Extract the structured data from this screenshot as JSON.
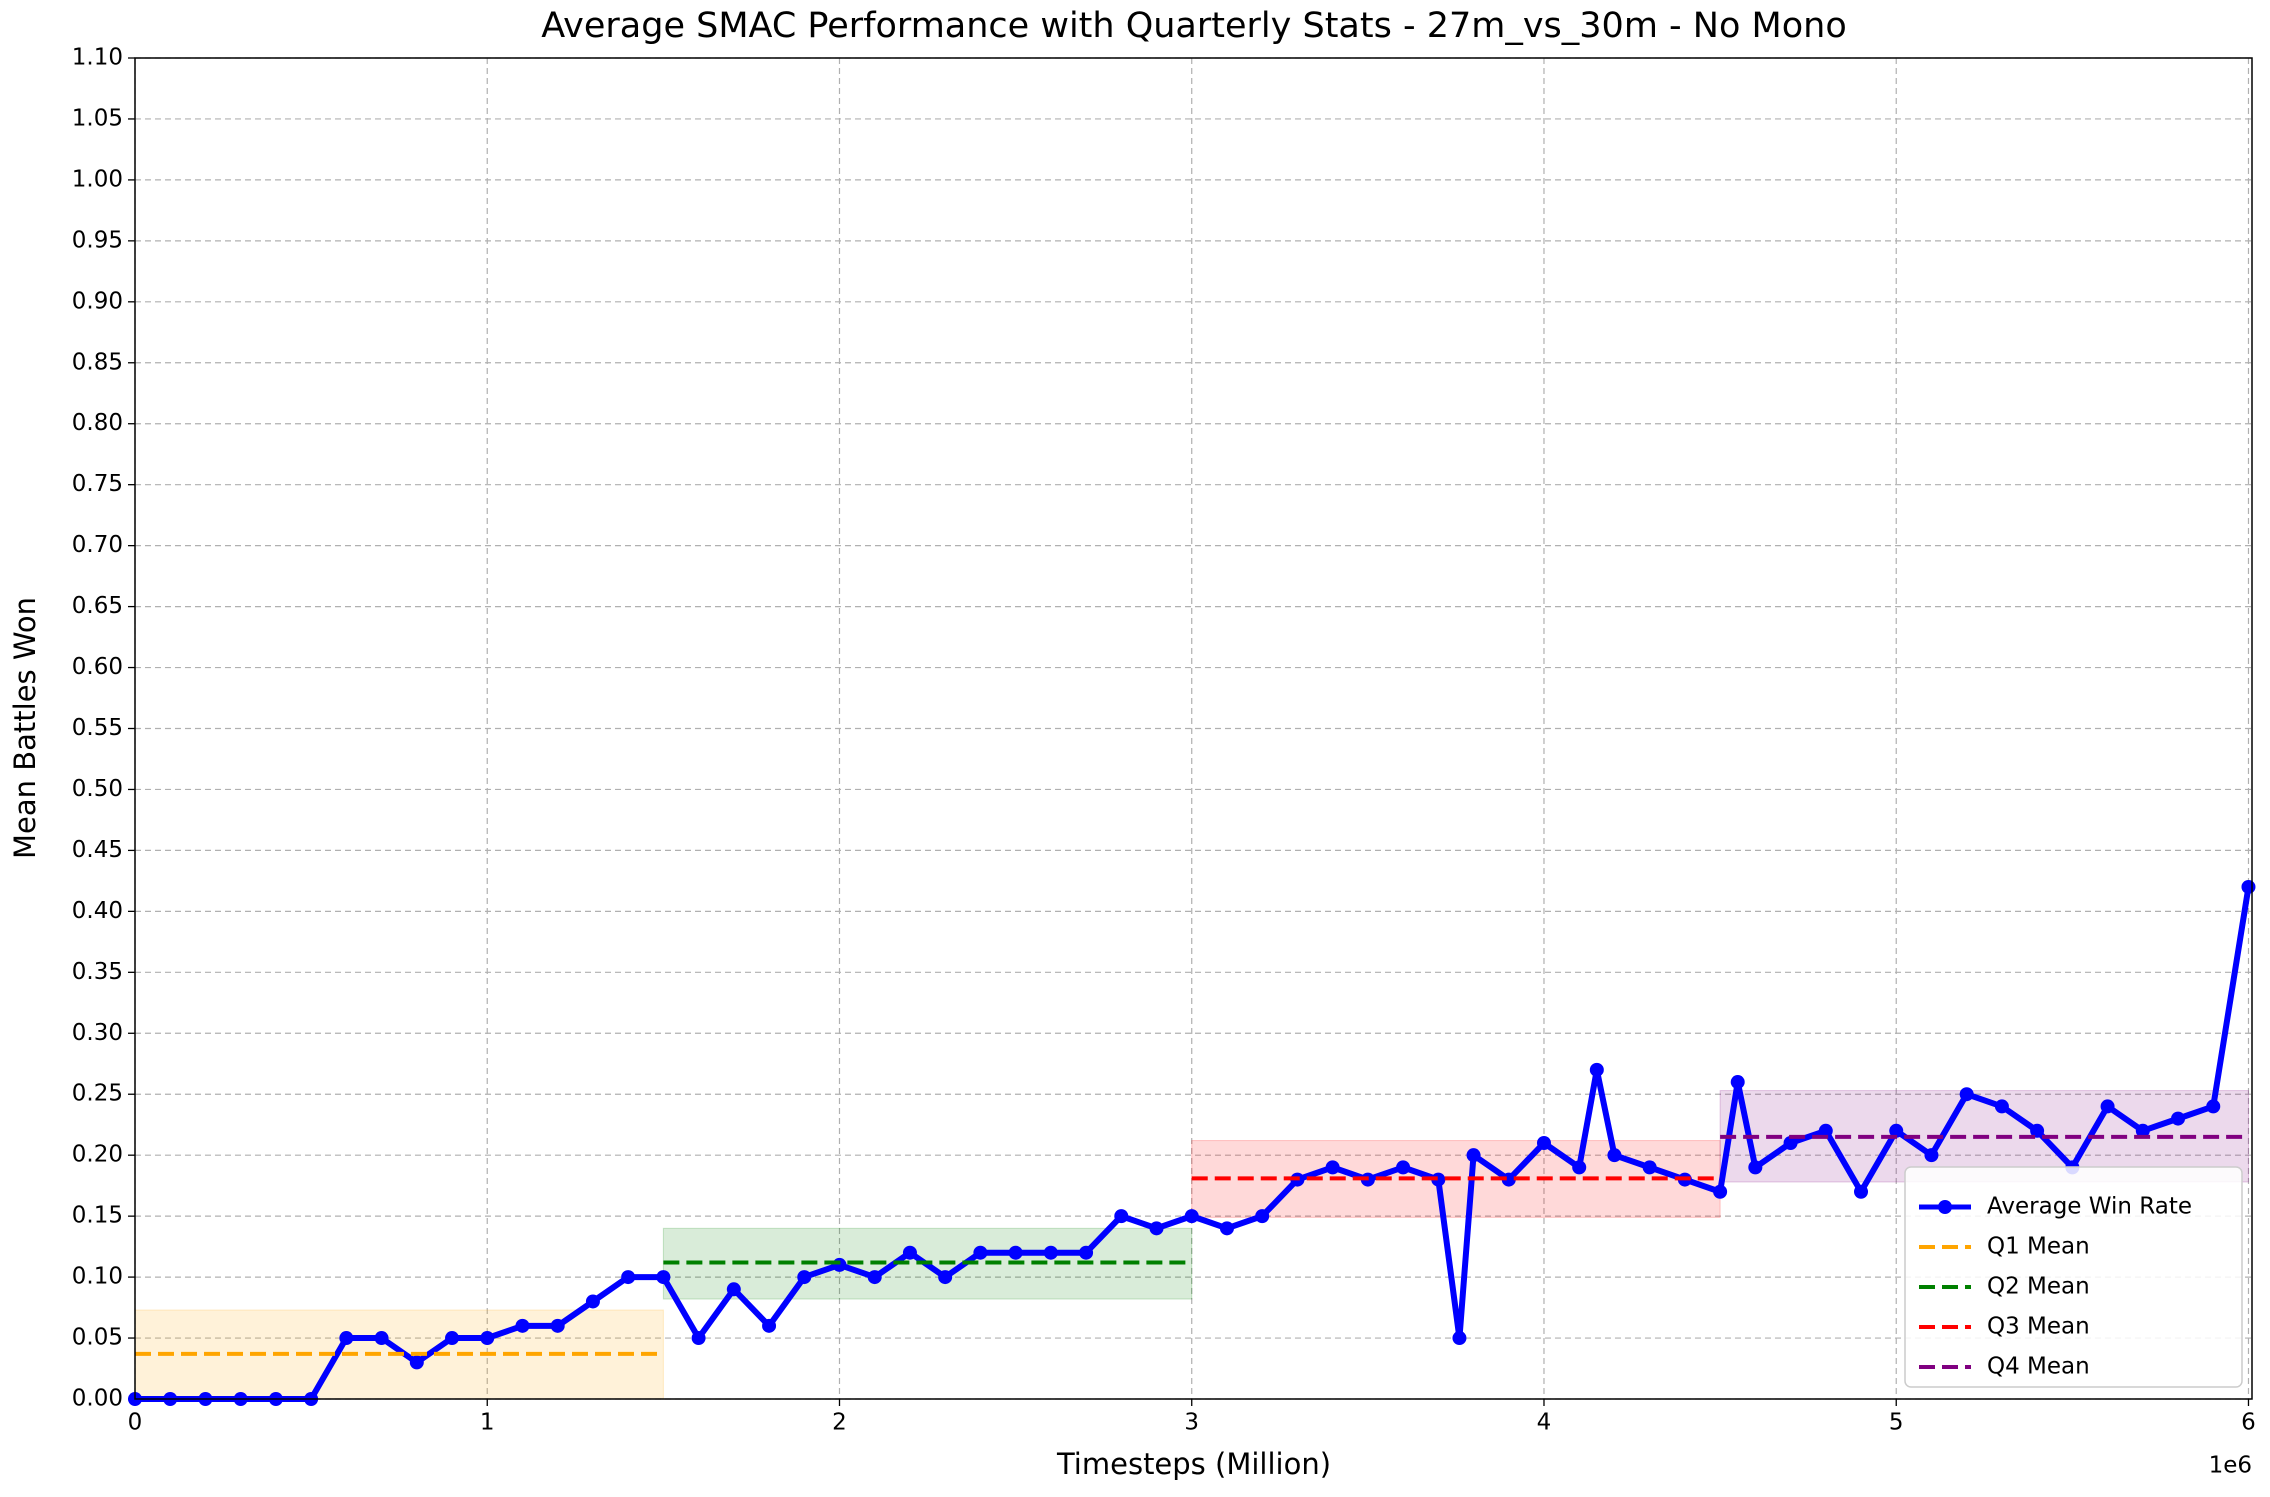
{
  "chart_data": {
    "type": "line",
    "title": "Average SMAC Performance with Quarterly Stats - 27m_vs_30m - No Mono",
    "x_label": "Timesteps (Million)",
    "y_label": "Mean Battles Won",
    "x_offset_label": "1e6",
    "xlim": [
      0,
      6.01
    ],
    "ylim": [
      0,
      1.1
    ],
    "xticks": [
      0,
      1,
      2,
      3,
      4,
      5,
      6
    ],
    "yticks": [
      {
        "value": 0,
        "label": "0.00"
      },
      {
        "value": 0.05,
        "label": "0.05"
      },
      {
        "value": 0.1,
        "label": "0.10"
      },
      {
        "value": 0.15,
        "label": "0.15"
      },
      {
        "value": 0.2,
        "label": "0.20"
      },
      {
        "value": 0.25,
        "label": "0.25"
      },
      {
        "value": 0.3,
        "label": "0.30"
      },
      {
        "value": 0.35,
        "label": "0.35"
      },
      {
        "value": 0.4,
        "label": "0.40"
      },
      {
        "value": 0.45,
        "label": "0.45"
      },
      {
        "value": 0.5,
        "label": "0.50"
      },
      {
        "value": 0.55,
        "label": "0.55"
      },
      {
        "value": 0.6,
        "label": "0.60"
      },
      {
        "value": 0.65,
        "label": "0.65"
      },
      {
        "value": 0.7,
        "label": "0.70"
      },
      {
        "value": 0.75,
        "label": "0.75"
      },
      {
        "value": 0.8,
        "label": "0.80"
      },
      {
        "value": 0.85,
        "label": "0.85"
      },
      {
        "value": 0.9,
        "label": "0.90"
      },
      {
        "value": 0.95,
        "label": "0.95"
      },
      {
        "value": 1.0,
        "label": "1.00"
      },
      {
        "value": 1.05,
        "label": "1.05"
      },
      {
        "value": 1.1,
        "label": "1.10"
      }
    ],
    "grid": true,
    "legend": "lower right",
    "x": [
      0,
      0.1,
      0.2,
      0.3,
      0.4,
      0.5,
      0.6,
      0.7,
      0.8,
      0.9,
      1.0,
      1.1,
      1.2,
      1.3,
      1.4,
      1.5,
      1.6,
      1.7,
      1.8,
      1.9,
      2.0,
      2.1,
      2.2,
      2.3,
      2.4,
      2.5,
      2.6,
      2.7,
      2.8,
      2.9,
      3.0,
      3.1,
      3.2,
      3.3,
      3.4,
      3.5,
      3.6,
      3.7,
      3.76,
      3.8,
      3.9,
      4.0,
      4.1,
      4.15,
      4.2,
      4.3,
      4.4,
      4.5,
      4.55,
      4.6,
      4.7,
      4.8,
      4.9,
      5.0,
      5.1,
      5.2,
      5.3,
      5.4,
      5.5,
      5.6,
      5.7,
      5.8,
      5.9,
      6.0
    ],
    "series": [
      {
        "name": "Average Win Rate",
        "color": "#0000ff",
        "values": [
          0,
          0,
          0,
          0,
          0,
          0,
          0.05,
          0.05,
          0.03,
          0.05,
          0.05,
          0.06,
          0.06,
          0.08,
          0.1,
          0.1,
          0.05,
          0.09,
          0.06,
          0.1,
          0.11,
          0.1,
          0.12,
          0.1,
          0.12,
          0.12,
          0.12,
          0.12,
          0.15,
          0.14,
          0.15,
          0.14,
          0.15,
          0.18,
          0.19,
          0.18,
          0.19,
          0.18,
          0.05,
          0.2,
          0.18,
          0.21,
          0.19,
          0.27,
          0.2,
          0.19,
          0.18,
          0.17,
          0.26,
          0.19,
          0.21,
          0.22,
          0.17,
          0.22,
          0.2,
          0.25,
          0.24,
          0.22,
          0.19,
          0.24,
          0.22,
          0.23,
          0.24,
          0.42
        ]
      }
    ],
    "quarters": [
      {
        "name": "Q1 Mean",
        "color": "#ffa500",
        "mean": 0.037,
        "start": 0,
        "end": 1.5,
        "band": [
          0,
          0.073
        ]
      },
      {
        "name": "Q2 Mean",
        "color": "#008000",
        "mean": 0.112,
        "start": 1.5,
        "end": 3.0,
        "band": [
          0.082,
          0.14
        ]
      },
      {
        "name": "Q3 Mean",
        "color": "#ff0000",
        "mean": 0.181,
        "start": 3.0,
        "end": 4.5,
        "band": [
          0.149,
          0.212
        ]
      },
      {
        "name": "Q4 Mean",
        "color": "#800080",
        "mean": 0.215,
        "start": 4.5,
        "end": 6.0,
        "band": [
          0.178,
          0.253
        ]
      }
    ]
  }
}
